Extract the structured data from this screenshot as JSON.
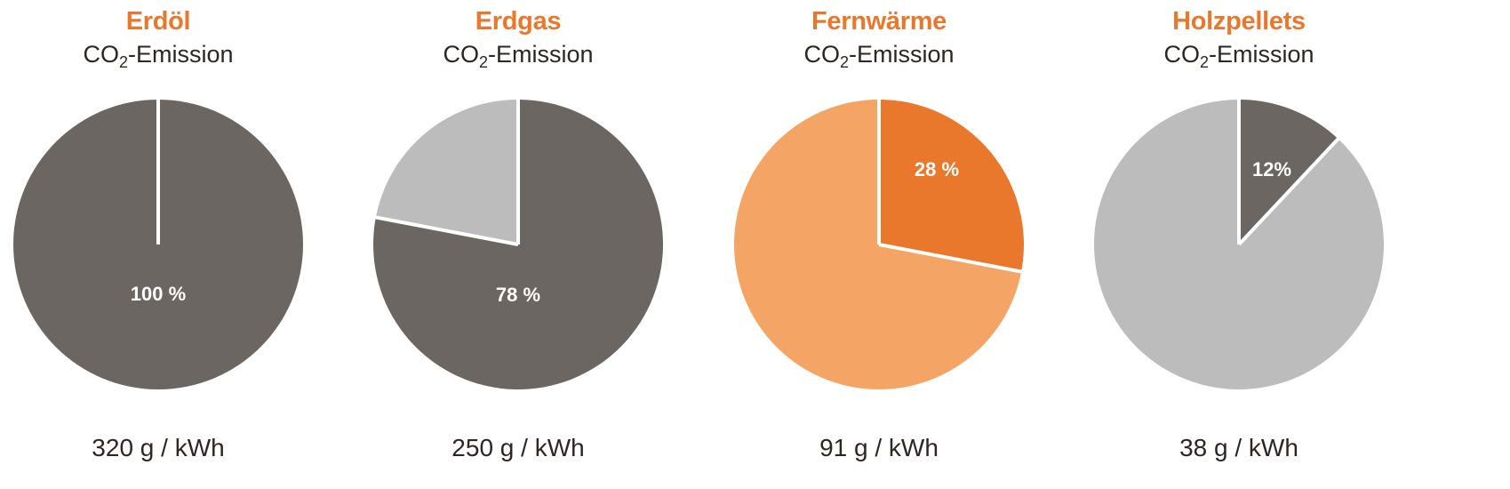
{
  "chart_data": [
    {
      "type": "pie",
      "title": "Erdöl",
      "subtitle_main": "CO",
      "subtitle_sub": "2",
      "subtitle_rest": "-Emission",
      "value_label": "320 g / kWh",
      "percent_label": "100 %",
      "share": 100,
      "highlight_color": "#6b6661",
      "rest_color": "#bcbcbc"
    },
    {
      "type": "pie",
      "title": "Erdgas",
      "subtitle_main": "CO",
      "subtitle_sub": "2",
      "subtitle_rest": "-Emission",
      "value_label": "250 g / kWh",
      "percent_label": "78 %",
      "share": 78,
      "highlight_color": "#6b6661",
      "rest_color": "#bcbcbc"
    },
    {
      "type": "pie",
      "title": "Fernwärme",
      "subtitle_main": "CO",
      "subtitle_sub": "2",
      "subtitle_rest": "-Emission",
      "value_label": "91 g / kWh",
      "percent_label": "28 %",
      "share": 28,
      "highlight_color": "#e9782c",
      "rest_color": "#f4a464"
    },
    {
      "type": "pie",
      "title": "Holzpellets",
      "subtitle_main": "CO",
      "subtitle_sub": "2",
      "subtitle_rest": "-Emission",
      "value_label": "38 g / kWh",
      "percent_label": "12%",
      "share": 12,
      "highlight_color": "#6b6661",
      "rest_color": "#bcbcbc"
    }
  ]
}
